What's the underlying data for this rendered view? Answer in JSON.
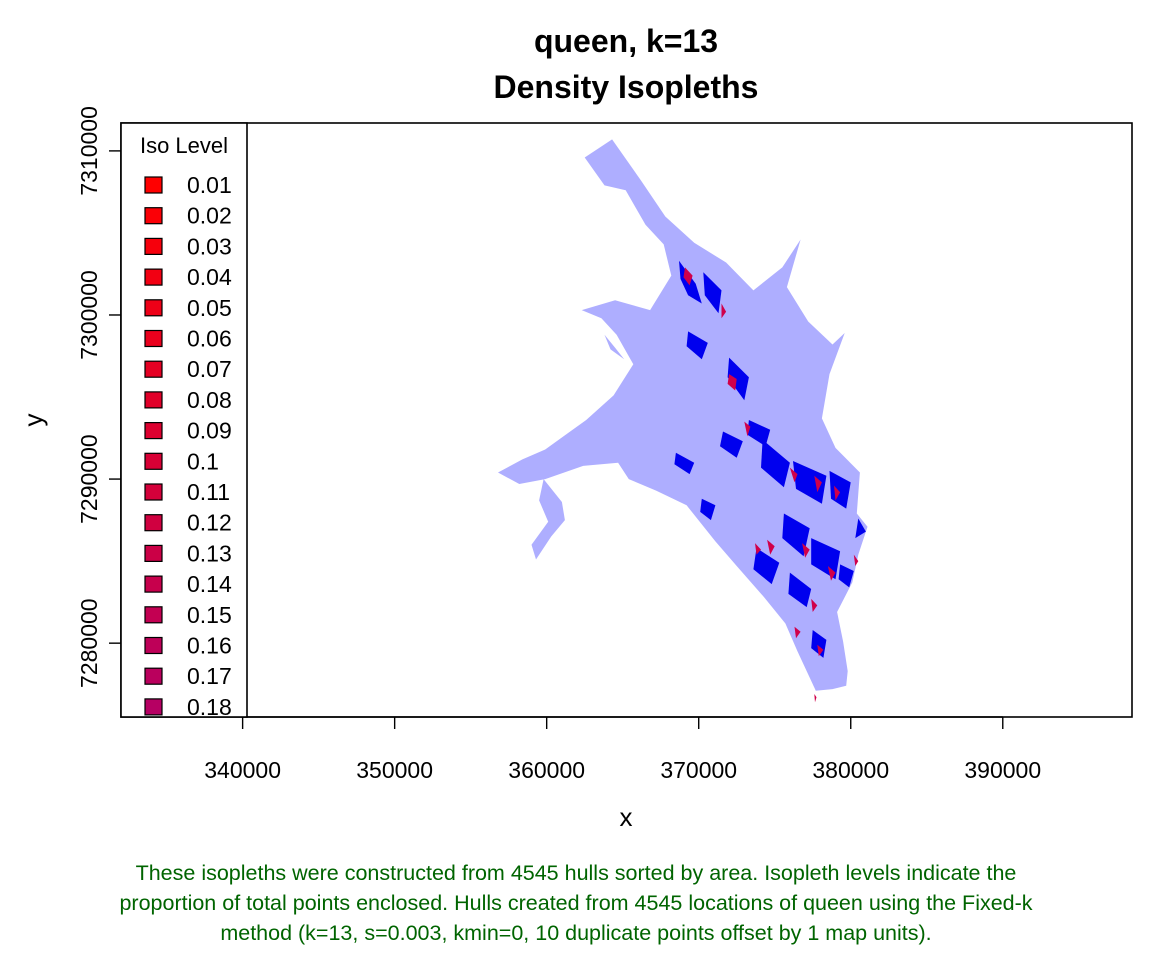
{
  "chart_data": {
    "type": "area",
    "title": "queen, k=13",
    "subtitle": "Density Isopleths",
    "xlabel": "x",
    "ylabel": "y",
    "xlim": [
      332000,
      398500
    ],
    "ylim": [
      7275500,
      7311700
    ],
    "x_ticks": [
      340000,
      350000,
      360000,
      370000,
      380000,
      390000
    ],
    "y_ticks": [
      7280000,
      7290000,
      7300000,
      7310000
    ],
    "x_tick_labels": [
      "340000",
      "350000",
      "360000",
      "370000",
      "380000",
      "390000"
    ],
    "y_tick_labels": [
      "7280000",
      "7290000",
      "7300000",
      "7310000"
    ],
    "legend": {
      "title": "Iso Level",
      "position": "left",
      "levels": [
        "0.01",
        "0.02",
        "0.03",
        "0.04",
        "0.05",
        "0.06",
        "0.07",
        "0.08",
        "0.09",
        "0.1",
        "0.11",
        "0.12",
        "0.13",
        "0.14",
        "0.15",
        "0.16",
        "0.17",
        "0.18"
      ],
      "colors": [
        "#ff0000",
        "#fb0006",
        "#f6000c",
        "#f20012",
        "#ee0017",
        "#ea001d",
        "#e50023",
        "#e10029",
        "#dd002f",
        "#d80035",
        "#d4003a",
        "#d00040",
        "#cb0046",
        "#c7004c",
        "#c30052",
        "#be0058",
        "#ba005d",
        "#b60063"
      ]
    },
    "isopleths": [
      {
        "level": "outer",
        "color": "#aaaaff",
        "outline": [
          [
            362500,
            7309600
          ],
          [
            364300,
            7310700
          ],
          [
            366200,
            7308200
          ],
          [
            367800,
            7306000
          ],
          [
            369700,
            7304400
          ],
          [
            371800,
            7303200
          ],
          [
            373600,
            7301500
          ],
          [
            375500,
            7302900
          ],
          [
            376700,
            7304600
          ],
          [
            375800,
            7301700
          ],
          [
            377200,
            7299600
          ],
          [
            378800,
            7298200
          ],
          [
            379600,
            7298900
          ],
          [
            378600,
            7296400
          ],
          [
            378100,
            7293700
          ],
          [
            379000,
            7291900
          ],
          [
            380600,
            7290400
          ],
          [
            380400,
            7287900
          ],
          [
            381100,
            7287100
          ],
          [
            380500,
            7285400
          ],
          [
            380100,
            7283700
          ],
          [
            379100,
            7281900
          ],
          [
            379500,
            7280100
          ],
          [
            379800,
            7278300
          ],
          [
            379700,
            7277400
          ],
          [
            378800,
            7277200
          ],
          [
            377700,
            7277100
          ],
          [
            376500,
            7279500
          ],
          [
            375700,
            7281200
          ],
          [
            374300,
            7282800
          ],
          [
            372500,
            7284700
          ],
          [
            371100,
            7286200
          ],
          [
            369200,
            7288400
          ],
          [
            367200,
            7289300
          ],
          [
            365400,
            7290000
          ],
          [
            364700,
            7291000
          ],
          [
            362400,
            7290800
          ],
          [
            359900,
            7290000
          ],
          [
            358200,
            7289700
          ],
          [
            356800,
            7290400
          ],
          [
            358400,
            7291200
          ],
          [
            359900,
            7291800
          ],
          [
            361100,
            7292600
          ],
          [
            362600,
            7293600
          ],
          [
            364400,
            7295100
          ],
          [
            365700,
            7297000
          ],
          [
            364600,
            7298800
          ],
          [
            363600,
            7299800
          ],
          [
            362300,
            7300300
          ],
          [
            364500,
            7300900
          ],
          [
            366800,
            7300300
          ],
          [
            368200,
            7302400
          ],
          [
            367700,
            7304300
          ],
          [
            366500,
            7305500
          ],
          [
            365200,
            7307600
          ],
          [
            363800,
            7307900
          ]
        ],
        "holes": [
          [
            [
              359800,
              7290000
            ],
            [
              361000,
              7288600
            ],
            [
              361200,
              7287500
            ],
            [
              360300,
              7286500
            ],
            [
              359300,
              7285100
            ],
            [
              359000,
              7286000
            ],
            [
              360100,
              7287400
            ],
            [
              359500,
              7288700
            ]
          ],
          [
            [
              363800,
              7298800
            ],
            [
              364500,
              7298000
            ],
            [
              365100,
              7297300
            ],
            [
              364200,
              7297900
            ]
          ]
        ]
      },
      {
        "level": "inner",
        "color": "#0000ee",
        "patches": [
          [
            [
              368700,
              7303300
            ],
            [
              369800,
              7301900
            ],
            [
              370200,
              7300700
            ],
            [
              369300,
              7301200
            ],
            [
              368800,
              7302200
            ]
          ],
          [
            [
              370300,
              7302600
            ],
            [
              371500,
              7301500
            ],
            [
              371300,
              7300100
            ],
            [
              370400,
              7301200
            ]
          ],
          [
            [
              372000,
              7297400
            ],
            [
              373300,
              7296200
            ],
            [
              373000,
              7294800
            ],
            [
              371900,
              7296200
            ]
          ],
          [
            [
              374200,
              7292400
            ],
            [
              376000,
              7291000
            ],
            [
              375600,
              7289500
            ],
            [
              374100,
              7290700
            ]
          ],
          [
            [
              376200,
              7291100
            ],
            [
              378400,
              7290200
            ],
            [
              378100,
              7288500
            ],
            [
              376400,
              7289400
            ]
          ],
          [
            [
              378600,
              7290500
            ],
            [
              380000,
              7289800
            ],
            [
              379700,
              7288200
            ],
            [
              378700,
              7288800
            ]
          ],
          [
            [
              375600,
              7287900
            ],
            [
              377300,
              7287000
            ],
            [
              376900,
              7285300
            ],
            [
              375500,
              7286400
            ]
          ],
          [
            [
              377400,
              7286400
            ],
            [
              379300,
              7285600
            ],
            [
              379000,
              7283900
            ],
            [
              377400,
              7284800
            ]
          ],
          [
            [
              373800,
              7285800
            ],
            [
              375300,
              7284900
            ],
            [
              374800,
              7283600
            ],
            [
              373600,
              7284500
            ]
          ],
          [
            [
              376000,
              7284300
            ],
            [
              377400,
              7283300
            ],
            [
              377100,
              7282200
            ],
            [
              375900,
              7283000
            ]
          ],
          [
            [
              377500,
              7280800
            ],
            [
              378400,
              7280200
            ],
            [
              378200,
              7279100
            ],
            [
              377400,
              7279700
            ]
          ],
          [
            [
              380500,
              7287600
            ],
            [
              381000,
              7286800
            ],
            [
              380300,
              7286400
            ]
          ],
          [
            [
              369300,
              7299000
            ],
            [
              370600,
              7298300
            ],
            [
              370200,
              7297300
            ],
            [
              369200,
              7298100
            ]
          ],
          [
            [
              371600,
              7292900
            ],
            [
              372900,
              7292300
            ],
            [
              372500,
              7291300
            ],
            [
              371400,
              7292000
            ]
          ],
          [
            [
              368500,
              7291600
            ],
            [
              369700,
              7291000
            ],
            [
              369400,
              7290300
            ],
            [
              368400,
              7290900
            ]
          ],
          [
            [
              370200,
              7288800
            ],
            [
              371100,
              7288400
            ],
            [
              370800,
              7287500
            ],
            [
              370100,
              7288000
            ]
          ],
          [
            [
              373300,
              7293600
            ],
            [
              374700,
              7293000
            ],
            [
              374400,
              7292000
            ],
            [
              373200,
              7292700
            ]
          ],
          [
            [
              379300,
              7284800
            ],
            [
              380200,
              7284400
            ],
            [
              379900,
              7283400
            ],
            [
              379200,
              7283900
            ]
          ]
        ]
      },
      {
        "level": "core",
        "color": "#d0004a",
        "patches": [
          [
            [
              369100,
              7302900
            ],
            [
              369600,
              7302400
            ],
            [
              369400,
              7301800
            ],
            [
              369000,
              7302300
            ]
          ],
          [
            [
              371500,
              7300700
            ],
            [
              371800,
              7300200
            ],
            [
              371500,
              7299800
            ]
          ],
          [
            [
              372000,
              7296400
            ],
            [
              372500,
              7296100
            ],
            [
              372400,
              7295400
            ],
            [
              371900,
              7295800
            ]
          ],
          [
            [
              373000,
              7293500
            ],
            [
              373400,
              7293200
            ],
            [
              373200,
              7292600
            ]
          ],
          [
            [
              376000,
              7290700
            ],
            [
              376500,
              7290300
            ],
            [
              376300,
              7289800
            ]
          ],
          [
            [
              377600,
              7290200
            ],
            [
              378100,
              7289800
            ],
            [
              377800,
              7289200
            ]
          ],
          [
            [
              378900,
              7289600
            ],
            [
              379300,
              7289200
            ],
            [
              379000,
              7288700
            ]
          ],
          [
            [
              374500,
              7286300
            ],
            [
              375000,
              7285900
            ],
            [
              374700,
              7285400
            ]
          ],
          [
            [
              376800,
              7286100
            ],
            [
              377300,
              7285700
            ],
            [
              377000,
              7285200
            ]
          ],
          [
            [
              378500,
              7284700
            ],
            [
              379000,
              7284300
            ],
            [
              378700,
              7283800
            ]
          ],
          [
            [
              377400,
              7282700
            ],
            [
              377800,
              7282300
            ],
            [
              377500,
              7281900
            ]
          ],
          [
            [
              377800,
              7279900
            ],
            [
              378200,
              7279600
            ],
            [
              377900,
              7279200
            ]
          ],
          [
            [
              376300,
              7281000
            ],
            [
              376700,
              7280700
            ],
            [
              376400,
              7280300
            ]
          ],
          [
            [
              380200,
              7285400
            ],
            [
              380500,
              7285000
            ],
            [
              380300,
              7284700
            ]
          ],
          [
            [
              377600,
              7276900
            ],
            [
              377750,
              7276700
            ],
            [
              377650,
              7276400
            ]
          ],
          [
            [
              373700,
              7286100
            ],
            [
              374100,
              7285700
            ],
            [
              373800,
              7285400
            ]
          ]
        ]
      }
    ]
  },
  "caption": {
    "line1": "These isopleths were constructed from 4545 hulls sorted by area. Isopleth levels indicate the",
    "line2": "proportion of total points enclosed. Hulls created from 4545 locations of queen using the Fixed-k",
    "line3": "method (k=13, s=0.003, kmin=0, 10 duplicate points offset by 1 map units)."
  }
}
